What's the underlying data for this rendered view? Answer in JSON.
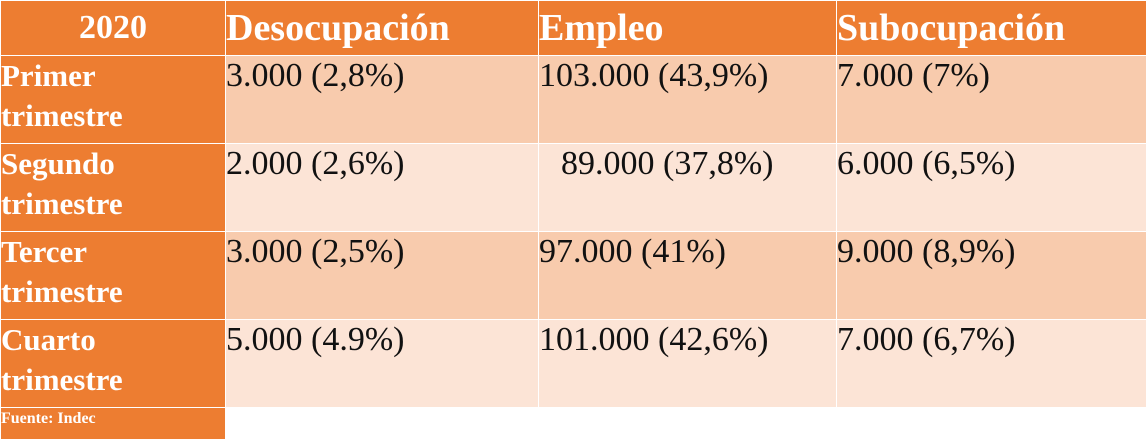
{
  "chart_data": {
    "type": "table",
    "header": {
      "year": "2020",
      "columns": [
        "Desocupación",
        "Empleo",
        "Subocupación"
      ]
    },
    "rows": [
      {
        "label": "Primer trimestre",
        "label_line1": "Primer",
        "label_line2": "trimestre",
        "values": [
          "3.000 (2,8%)",
          "103.000 (43,9%)",
          "7.000 (7%)"
        ],
        "numeric": {
          "Desocupación": 3000,
          "Desocupación_pct": 2.8,
          "Empleo": 103000,
          "Empleo_pct": 43.9,
          "Subocupación": 7000,
          "Subocupación_pct": 7
        }
      },
      {
        "label": "Segundo trimestre",
        "label_line1": "Segundo",
        "label_line2": "trimestre",
        "values": [
          "2.000 (2,6%)",
          "89.000 (37,8%)",
          "6.000 (6,5%)"
        ],
        "numeric": {
          "Desocupación": 2000,
          "Desocupación_pct": 2.6,
          "Empleo": 89000,
          "Empleo_pct": 37.8,
          "Subocupación": 6000,
          "Subocupación_pct": 6.5
        }
      },
      {
        "label": "Tercer trimestre",
        "label_line1": "Tercer",
        "label_line2": "trimestre",
        "values": [
          "3.000 (2,5%)",
          "97.000 (41%)",
          "9.000 (8,9%)"
        ],
        "numeric": {
          "Desocupación": 3000,
          "Desocupación_pct": 2.5,
          "Empleo": 97000,
          "Empleo_pct": 41,
          "Subocupación": 9000,
          "Subocupación_pct": 8.9
        }
      },
      {
        "label": "Cuarto trimestre",
        "label_line1": "Cuarto",
        "label_line2": "trimestre",
        "values": [
          "5.000 (4.9%)",
          "101.000 (42,6%)",
          "7.000 (6,7%)"
        ],
        "numeric": {
          "Desocupación": 5000,
          "Desocupación_pct": 4.9,
          "Empleo": 101000,
          "Empleo_pct": 42.6,
          "Subocupación": 7000,
          "Subocupación_pct": 6.7
        }
      }
    ],
    "source": "Fuente: Indec",
    "colors": {
      "header_bg": "#ed7d31",
      "row_dark": "#f8cbad",
      "row_light": "#fce4d6",
      "label_text": "#ffffff"
    }
  }
}
